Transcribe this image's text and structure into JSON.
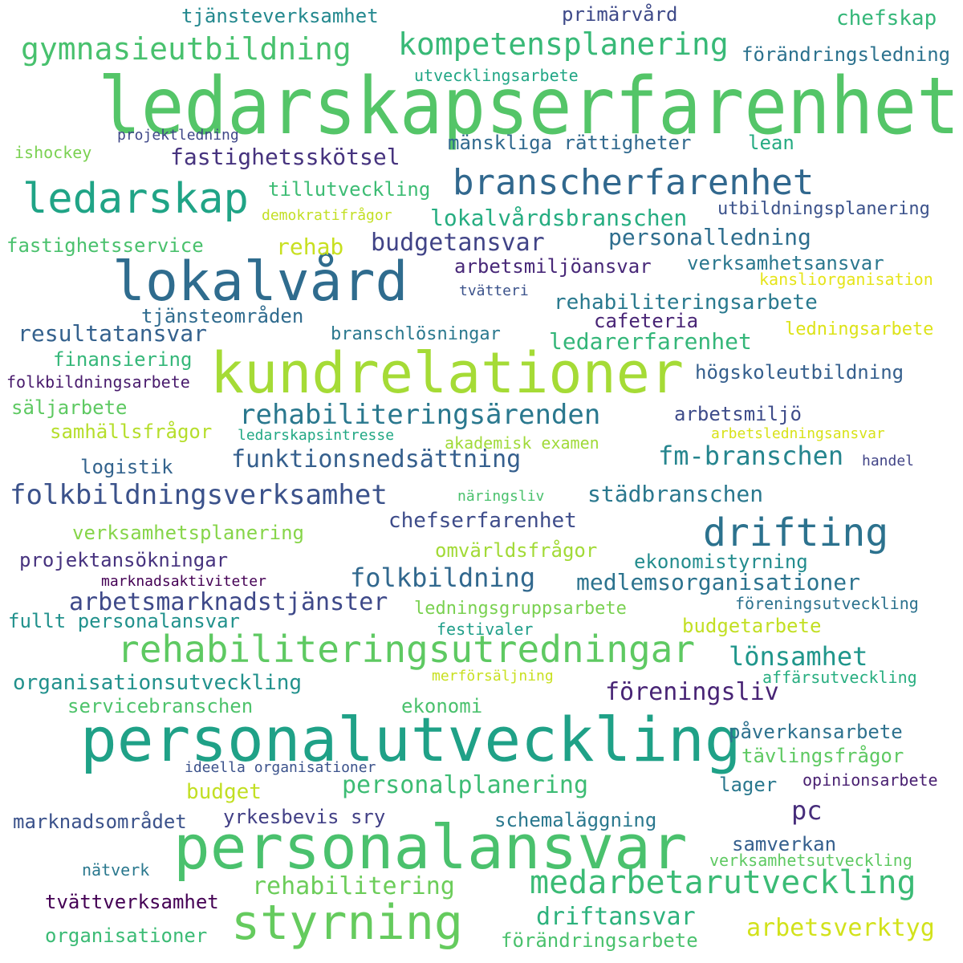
{
  "words": [
    {
      "text": "ledarskapserfarenhet",
      "color": "#54c568"
    },
    {
      "text": "kundrelationer",
      "color": "#a5db36"
    },
    {
      "text": "personalutveckling",
      "color": "#1fa187"
    },
    {
      "text": "personalansvar",
      "color": "#4ac16d"
    },
    {
      "text": "lokalvård",
      "color": "#2f6c8e"
    },
    {
      "text": "ledarskap",
      "color": "#20a486"
    },
    {
      "text": "branscherfarenhet",
      "color": "#31688e"
    },
    {
      "text": "styrning",
      "color": "#65cb5e"
    },
    {
      "text": "rehabiliteringsutredningar",
      "color": "#5ec962"
    },
    {
      "text": "drifting",
      "color": "#2c728e"
    },
    {
      "text": "gymnasieutbildning",
      "color": "#48c16e"
    },
    {
      "text": "kompetensplanering",
      "color": "#38b977"
    },
    {
      "text": "medarbetarutveckling",
      "color": "#3bbb75"
    },
    {
      "text": "folkbildningsverksamhet",
      "color": "#3b528b"
    },
    {
      "text": "rehabiliteringsärenden",
      "color": "#2a788e"
    },
    {
      "text": "funktionsnedsättning",
      "color": "#355f8d"
    },
    {
      "text": "fm-branschen",
      "color": "#25858e"
    },
    {
      "text": "folkbildning",
      "color": "#31688e"
    },
    {
      "text": "arbetsmarknadstjänster",
      "color": "#3e4989"
    },
    {
      "text": "lönsamhet",
      "color": "#1f968b"
    },
    {
      "text": "föreningsliv",
      "color": "#482475"
    },
    {
      "text": "driftansvar",
      "color": "#2db27d"
    },
    {
      "text": "rehabilitering",
      "color": "#6ccd5a"
    },
    {
      "text": "budgetansvar",
      "color": "#414487"
    },
    {
      "text": "fastighetsskötsel",
      "color": "#46337e"
    },
    {
      "text": "personalplanering",
      "color": "#3dbc74"
    },
    {
      "text": "arbetsverktyg",
      "color": "#d2e21b"
    },
    {
      "text": "pc",
      "color": "#472d7b"
    },
    {
      "text": "personalledning",
      "color": "#2e6e8e"
    },
    {
      "text": "lokalvårdsbranschen",
      "color": "#26ad81"
    },
    {
      "text": "resultatansvar",
      "color": "#34618d"
    },
    {
      "text": "städbranschen",
      "color": "#2a788e"
    },
    {
      "text": "chefserfarenhet",
      "color": "#3e4c8a"
    },
    {
      "text": "medlemsorganisationer",
      "color": "#2c738e"
    },
    {
      "text": "ledarerfarenhet",
      "color": "#34b679"
    },
    {
      "text": "rehabiliteringsarbete",
      "color": "#29798e"
    },
    {
      "text": "organisationsutveckling",
      "color": "#21918c"
    },
    {
      "text": "tjänsteverksamhet",
      "color": "#23888e"
    },
    {
      "text": "primärvård",
      "color": "#3e4a89"
    },
    {
      "text": "chefskap",
      "color": "#35b779"
    },
    {
      "text": "förändringsledning",
      "color": "#2c728e"
    },
    {
      "text": "utvecklingsarbete",
      "color": "#21a685"
    },
    {
      "text": "projektledning",
      "color": "#3f4788"
    },
    {
      "text": "ishockey",
      "color": "#7ad151"
    },
    {
      "text": "mänskliga rättigheter",
      "color": "#30698e"
    },
    {
      "text": "lean",
      "color": "#25ab82"
    },
    {
      "text": "tillutveckling",
      "color": "#3dbc74"
    },
    {
      "text": "demokratifrågor",
      "color": "#c2df23"
    },
    {
      "text": "utbildningsplanering",
      "color": "#3b528b"
    },
    {
      "text": "fastighetsservice",
      "color": "#4ac16d"
    },
    {
      "text": "rehab",
      "color": "#c8e020"
    },
    {
      "text": "arbetsmiljöansvar",
      "color": "#482878"
    },
    {
      "text": "verksamhetsansvar",
      "color": "#2a778e"
    },
    {
      "text": "kansliorganisation",
      "color": "#e5e419"
    },
    {
      "text": "tvätteri",
      "color": "#3b528b"
    },
    {
      "text": "tjänsteområden",
      "color": "#2f6b8e"
    },
    {
      "text": "cafeteria",
      "color": "#482475"
    },
    {
      "text": "ledningsarbete",
      "color": "#dde318"
    },
    {
      "text": "branschlösningar",
      "color": "#2a788e"
    },
    {
      "text": "finansiering",
      "color": "#35b779"
    },
    {
      "text": "högskoleutbildning",
      "color": "#355f8d"
    },
    {
      "text": "folkbildningsarbete",
      "color": "#481a6c"
    },
    {
      "text": "säljarbete",
      "color": "#5ec962"
    },
    {
      "text": "arbetsmiljö",
      "color": "#3e4c8a"
    },
    {
      "text": "samhällsfrågor",
      "color": "#b5de2b"
    },
    {
      "text": "ledarskapsintresse",
      "color": "#22a884"
    },
    {
      "text": "akademisk examen",
      "color": "#a0da39"
    },
    {
      "text": "arbetsledningsansvar",
      "color": "#d8e219"
    },
    {
      "text": "logistik",
      "color": "#33638d"
    },
    {
      "text": "handel",
      "color": "#414487"
    },
    {
      "text": "näringsliv",
      "color": "#4ac16d"
    },
    {
      "text": "verksamhetsplanering",
      "color": "#86d549"
    },
    {
      "text": "omvärldsfrågor",
      "color": "#a2da37"
    },
    {
      "text": "projektansökningar",
      "color": "#46327e"
    },
    {
      "text": "ekonomistyrning",
      "color": "#228c8d"
    },
    {
      "text": "marknadsaktiviteter",
      "color": "#440154"
    },
    {
      "text": "ledningsgruppsarbete",
      "color": "#7ad151"
    },
    {
      "text": "föreningsutveckling",
      "color": "#2c728e"
    },
    {
      "text": "fullt personalansvar",
      "color": "#21918c"
    },
    {
      "text": "festivaler",
      "color": "#1f9e89"
    },
    {
      "text": "budgetarbete",
      "color": "#c2df23"
    },
    {
      "text": "merförsäljning",
      "color": "#c8e020"
    },
    {
      "text": "affärsutveckling",
      "color": "#28ae80"
    },
    {
      "text": "servicebranschen",
      "color": "#4ec36b"
    },
    {
      "text": "ekonomi",
      "color": "#4ac16d"
    },
    {
      "text": "påverkansarbete",
      "color": "#2d718e"
    },
    {
      "text": "tävlingsfrågor",
      "color": "#5ec962"
    },
    {
      "text": "ideella organisationer",
      "color": "#3b528b"
    },
    {
      "text": "budget",
      "color": "#c2df23"
    },
    {
      "text": "lager",
      "color": "#2a788e"
    },
    {
      "text": "opinionsarbete",
      "color": "#481f70"
    },
    {
      "text": "marknadsområdet",
      "color": "#3b528b"
    },
    {
      "text": "yrkesbevis sry",
      "color": "#424086"
    },
    {
      "text": "schemaläggning",
      "color": "#2a788e"
    },
    {
      "text": "samverkan",
      "color": "#355f8d"
    },
    {
      "text": "nätverk",
      "color": "#2a788e"
    },
    {
      "text": "verksamhetsutveckling",
      "color": "#5ec962"
    },
    {
      "text": "tvättverksamhet",
      "color": "#440154"
    },
    {
      "text": "organisationer",
      "color": "#3bbb75"
    },
    {
      "text": "förändringsarbete",
      "color": "#4ac16d"
    }
  ]
}
